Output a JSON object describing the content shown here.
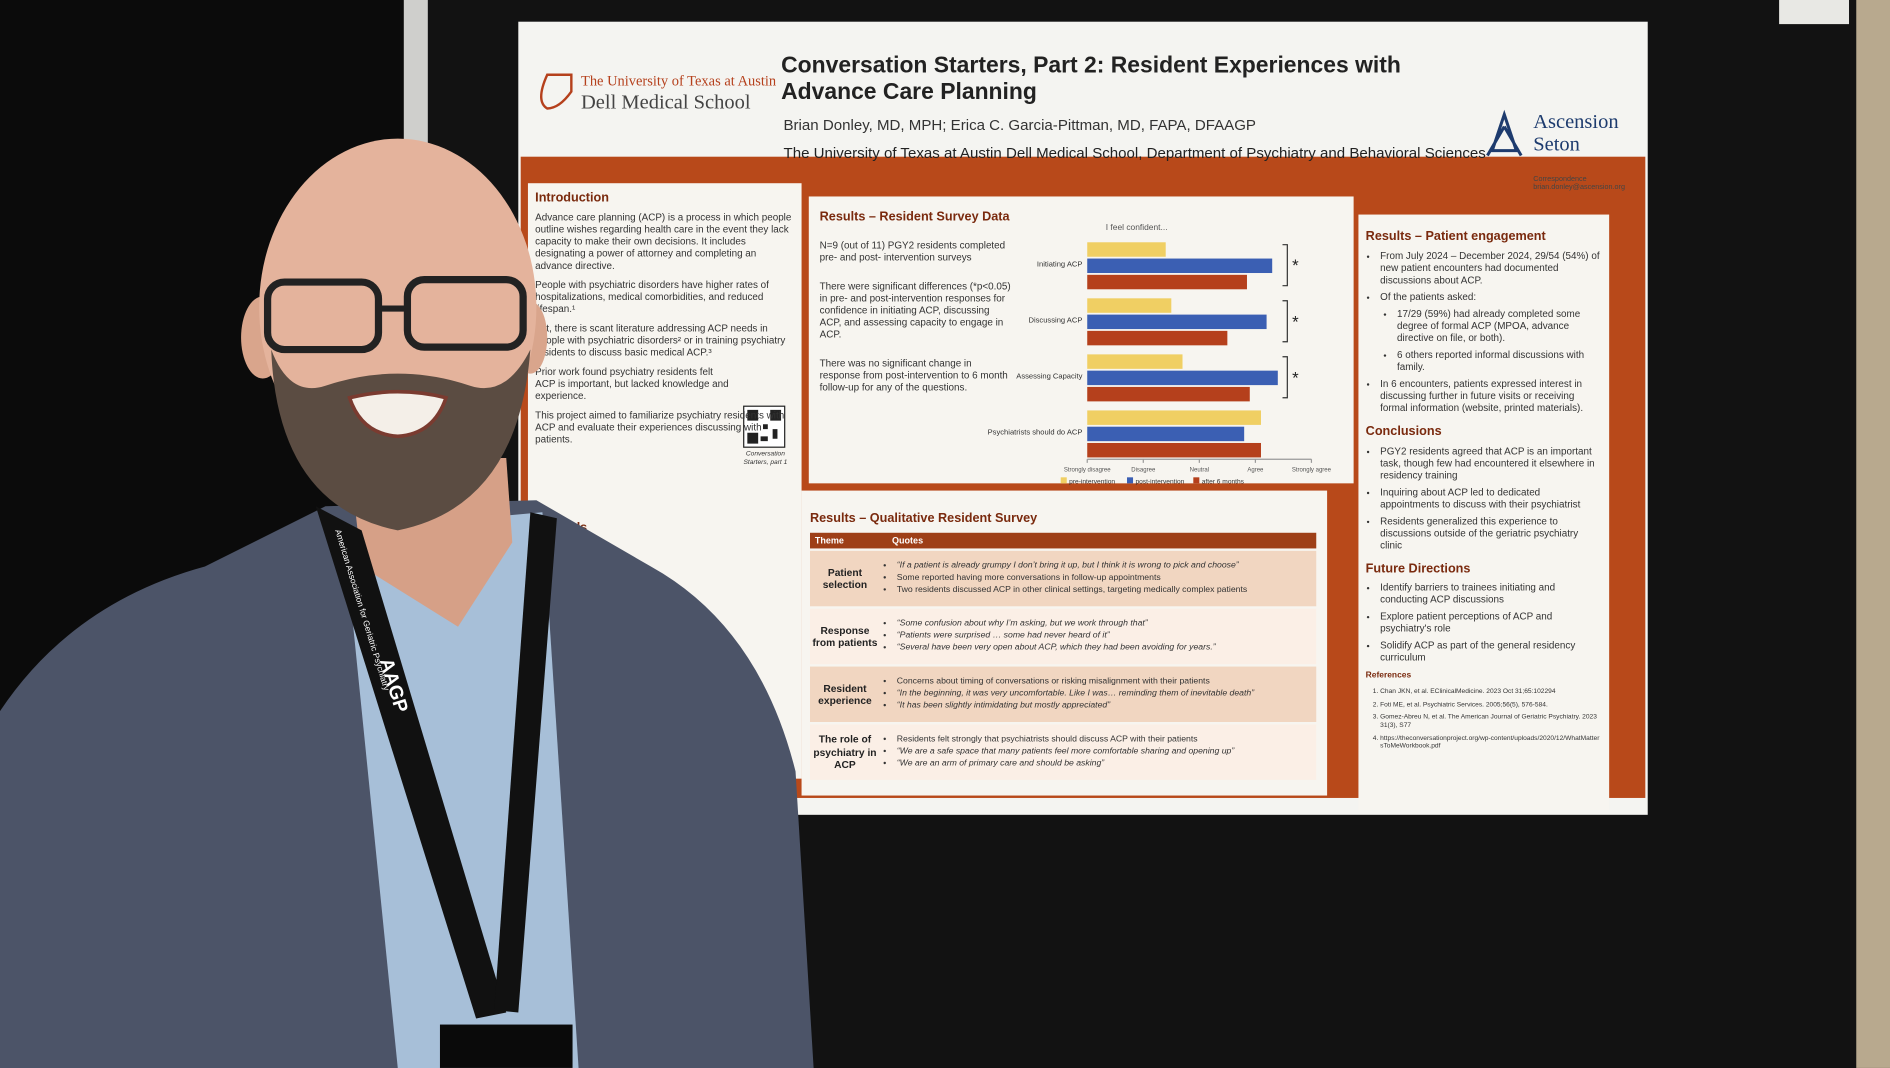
{
  "poster": {
    "logo_left": [
      "The University of Texas at Austin",
      "Dell Medical School"
    ],
    "title_lines": [
      "Conversation Starters, Part 2: Resident Experiences with",
      "Advance Care Planning"
    ],
    "authors": "Brian Donley, MD, MPH;  Erica C. Garcia-Pittman, MD, FAPA, DFAAGP",
    "affiliation": "The University of Texas at Austin Dell Medical School, Department of Psychiatry and Behavioral Sciences",
    "logo_right": [
      "Ascension",
      "Seton"
    ],
    "correspondence": [
      "Correspondence",
      "brian.donley@ascension.org"
    ],
    "introduction": {
      "heading": "Introduction",
      "paragraphs": [
        "Advance care planning (ACP) is a process in which people outline wishes regarding health care in the event they lack capacity to make their own decisions. It includes designating a power of attorney and completing an advance directive.",
        "People with psychiatric disorders have higher rates of hospitalizations, medical comorbidities, and reduced lifespan.¹",
        "Yet, there is scant literature addressing ACP needs in people with psychiatric disorders² or in training psychiatry residents to discuss basic medical ACP.³",
        "Prior work found psychiatry residents felt ACP is important, but lacked knowledge and experience.",
        "This project aimed to familiarize psychiatry residents with ACP and evaluate their experiences discussing with patients."
      ],
      "qr_caption": "Conversation Starters, part 1"
    },
    "methods": {
      "heading": "Methods"
    },
    "survey": {
      "heading": "Results – Resident Survey Data",
      "paragraphs": [
        "N=9 (out of 11) PGY2 residents completed pre- and post- intervention surveys",
        "There were significant differences (*p<0.05) in pre- and post-intervention responses for confidence in initiating ACP, discussing ACP, and assessing capacity to engage in ACP.",
        "There was no significant change in response from post-intervention to 6 month follow-up for any of the questions."
      ]
    },
    "chart": {
      "type": "bar",
      "horizontal": true,
      "title": "I feel confident...",
      "categories": [
        "Initiating ACP",
        "Discussing ACP",
        "Assessing Capacity",
        "Psychiatrists should do ACP"
      ],
      "series": [
        {
          "name": "pre-intervention",
          "color": "#f0cf63",
          "values": [
            2.4,
            2.5,
            2.7,
            4.1
          ]
        },
        {
          "name": "post-intervention",
          "color": "#3b5fb3",
          "values": [
            4.3,
            4.2,
            4.4,
            3.8
          ]
        },
        {
          "name": "after 6 months",
          "color": "#b5401c",
          "values": [
            3.85,
            3.5,
            3.9,
            4.1
          ]
        }
      ],
      "xlim": [
        1,
        5
      ],
      "xticks": [
        {
          "value": 1,
          "label": "Strongly disagree"
        },
        {
          "value": 2,
          "label": "Disagree"
        },
        {
          "value": 3,
          "label": "Neutral"
        },
        {
          "value": 4,
          "label": "Agree"
        },
        {
          "value": 5,
          "label": "Strongly agree"
        }
      ],
      "significance": [
        "*",
        "*",
        "*",
        null
      ]
    },
    "qualitative": {
      "heading": "Results – Qualitative Resident Survey",
      "columns": [
        "Theme",
        "Quotes"
      ],
      "rows": [
        {
          "theme": "Patient selection",
          "quotes": [
            "“If a patient is already grumpy I don’t bring it up, but I think it is wrong to pick and choose”",
            "Some reported having more conversations in follow-up appointments",
            "Two residents discussed ACP in other clinical settings, targeting medically complex patients"
          ]
        },
        {
          "theme": "Response from patients",
          "quotes": [
            "“Some confusion about why I’m asking, but we work through that”",
            "“Patients were surprised … some had never heard of it”",
            "“Several have been very open about ACP, which they had been avoiding for years.”"
          ]
        },
        {
          "theme": "Resident experience",
          "quotes": [
            "Concerns about timing of conversations or risking misalignment with their patients",
            "“In the beginning, it was very uncomfortable. Like I was… reminding them of inevitable death”",
            "“It has been slightly intimidating but mostly appreciated”"
          ]
        },
        {
          "theme": "The role of psychiatry in ACP",
          "quotes": [
            "Residents felt strongly that psychiatrists should discuss ACP with their patients",
            "“We are a safe space that many patients feel more comfortable sharing and opening up”",
            "“We are an arm of primary care and should be asking”"
          ]
        }
      ]
    },
    "engagement": {
      "heading": "Results – Patient engagement",
      "bullets": [
        "From July 2024 – December 2024, 29/54 (54%) of new patient encounters had documented discussions about ACP.",
        "Of the patients asked:",
        "17/29 (59%) had already completed some degree of formal ACP (MPOA, advance directive on file, or both).",
        "6 others reported informal discussions with family.",
        "In 6 encounters, patients expressed interest in discussing further in future visits or receiving formal information (website, printed materials)."
      ]
    },
    "conclusions": {
      "heading": "Conclusions",
      "bullets": [
        "PGY2 residents agreed that ACP is an important task, though few had encountered it elsewhere in residency training",
        "Inquiring about ACP led to dedicated appointments to discuss with their psychiatrist",
        "Residents generalized this experience to discussions outside of the geriatric psychiatry clinic"
      ]
    },
    "future": {
      "heading": "Future Directions",
      "bullets": [
        "Identify barriers to trainees initiating and conducting ACP discussions",
        "Explore patient perceptions of ACP and psychiatry's role",
        "Solidify ACP as part of the general residency curriculum"
      ]
    },
    "references": {
      "heading": "References",
      "items": [
        "Chan JKN, et al. EClinicalMedicine. 2023 Oct 31;65:102294",
        "Foti ME, et al. Psychiatric Services. 2005;56(5), 576-584.",
        "Gomez-Abreu N, et al. The American Journal of Geriatric Psychiatry. 2023 31(3), S77",
        "https://theconversationproject.org/wp-content/uploads/2020/12/WhatMattersToMeWorkbook.pdf"
      ]
    }
  },
  "lanyard": [
    "AAGP",
    "American Association for Geriatric Psychiatry"
  ]
}
